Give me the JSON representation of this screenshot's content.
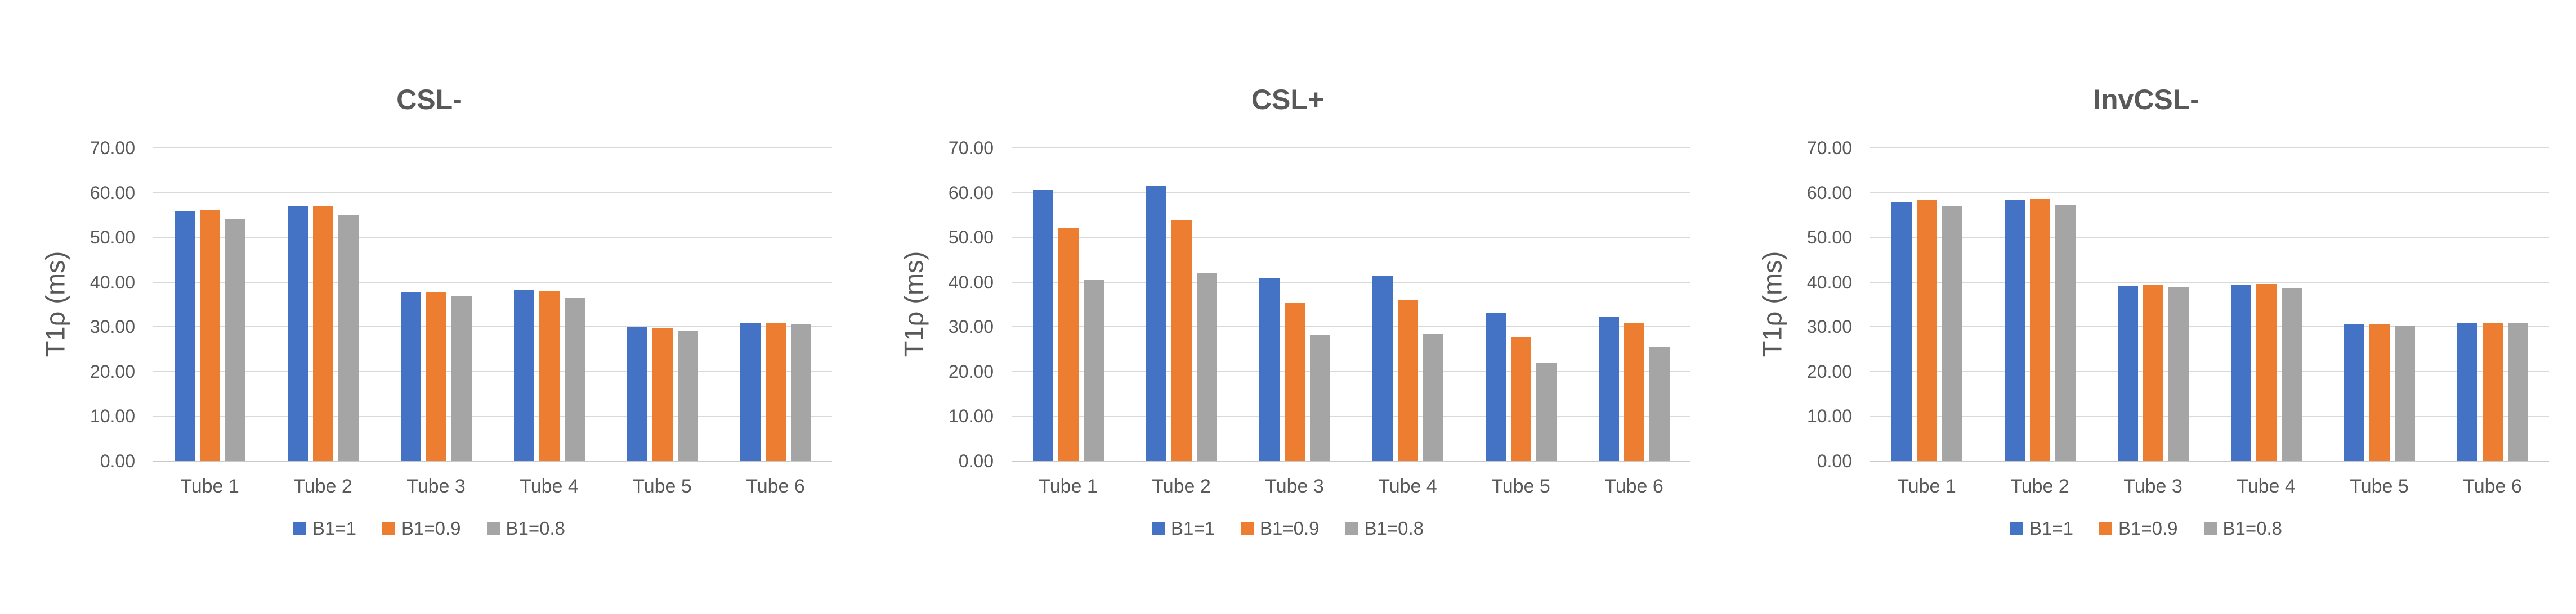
{
  "figure": {
    "background_color": "#FFFFFF",
    "text_color": "#595959",
    "gridline_color": "#D9D9D9",
    "axis_line_color": "#C9C9C9"
  },
  "legend": {
    "entries": [
      "B1=1",
      "B1=0.9",
      "B1=0.8"
    ],
    "colors": [
      "#4472C4",
      "#ED7D31",
      "#A5A5A5"
    ]
  },
  "chart_data": [
    {
      "type": "bar",
      "title": "CSL-",
      "xlabel": "",
      "ylabel": "T1ρ (ms)",
      "ylim": [
        0,
        70
      ],
      "ytick_labels": [
        "70.00",
        "60.00",
        "50.00",
        "40.00",
        "30.00",
        "20.00",
        "10.00",
        "0.00"
      ],
      "grid": true,
      "legend_position": "bottom",
      "categories": [
        "Tube 1",
        "Tube 2",
        "Tube 3",
        "Tube 4",
        "Tube 5",
        "Tube 6"
      ],
      "series": [
        {
          "name": "B1=1",
          "color": "#4472C4",
          "values": [
            55.9,
            57.1,
            37.8,
            38.2,
            29.9,
            30.8
          ]
        },
        {
          "name": "B1=0.9",
          "color": "#ED7D31",
          "values": [
            56.2,
            56.9,
            37.8,
            38.0,
            29.7,
            30.9
          ]
        },
        {
          "name": "B1=0.8",
          "color": "#A5A5A5",
          "values": [
            54.2,
            54.9,
            36.9,
            36.4,
            29.0,
            30.5
          ]
        }
      ]
    },
    {
      "type": "bar",
      "title": "CSL+",
      "xlabel": "",
      "ylabel": "T1ρ (ms)",
      "ylim": [
        0,
        70
      ],
      "ytick_labels": [
        "70.00",
        "60.00",
        "50.00",
        "40.00",
        "30.00",
        "20.00",
        "10.00",
        "0.00"
      ],
      "grid": true,
      "legend_position": "bottom",
      "categories": [
        "Tube 1",
        "Tube 2",
        "Tube 3",
        "Tube 4",
        "Tube 5",
        "Tube 6"
      ],
      "series": [
        {
          "name": "B1=1",
          "color": "#4472C4",
          "values": [
            60.6,
            61.5,
            40.8,
            41.5,
            33.0,
            32.3
          ]
        },
        {
          "name": "B1=0.9",
          "color": "#ED7D31",
          "values": [
            52.2,
            53.9,
            35.5,
            36.1,
            27.8,
            30.8
          ]
        },
        {
          "name": "B1=0.8",
          "color": "#A5A5A5",
          "values": [
            40.5,
            42.1,
            28.1,
            28.4,
            22.0,
            25.5
          ]
        }
      ]
    },
    {
      "type": "bar",
      "title": "InvCSL-",
      "xlabel": "",
      "ylabel": "T1ρ (ms)",
      "ylim": [
        0,
        70
      ],
      "ytick_labels": [
        "70.00",
        "60.00",
        "50.00",
        "40.00",
        "30.00",
        "20.00",
        "10.00",
        "0.00"
      ],
      "grid": true,
      "legend_position": "bottom",
      "categories": [
        "Tube 1",
        "Tube 2",
        "Tube 3",
        "Tube 4",
        "Tube 5",
        "Tube 6"
      ],
      "series": [
        {
          "name": "B1=1",
          "color": "#4472C4",
          "values": [
            57.8,
            58.3,
            39.2,
            39.4,
            30.5,
            30.9
          ]
        },
        {
          "name": "B1=0.9",
          "color": "#ED7D31",
          "values": [
            58.4,
            58.6,
            39.5,
            39.6,
            30.6,
            30.9
          ]
        },
        {
          "name": "B1=0.8",
          "color": "#A5A5A5",
          "values": [
            57.0,
            57.3,
            39.0,
            38.6,
            30.3,
            30.8
          ]
        }
      ]
    }
  ]
}
